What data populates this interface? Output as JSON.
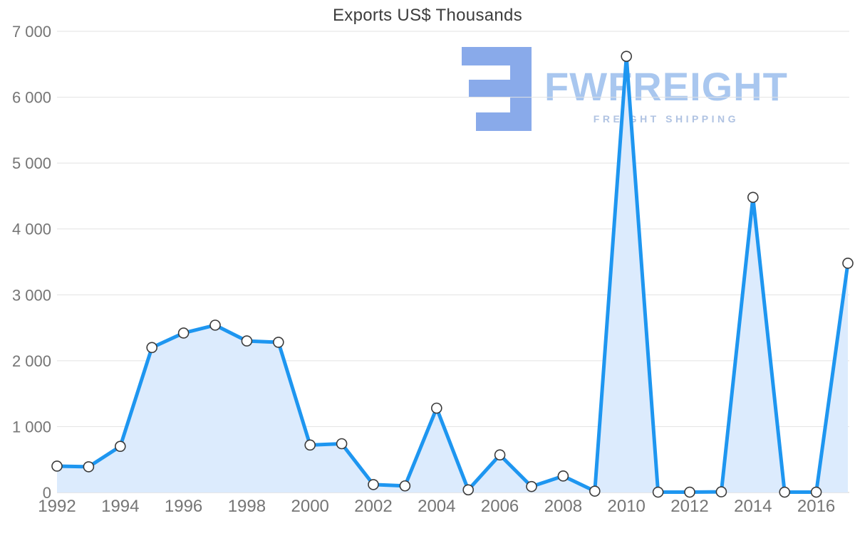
{
  "chart_data": {
    "type": "area",
    "title": "Exports US$ Thousands",
    "x": [
      1992,
      1993,
      1994,
      1995,
      1996,
      1997,
      1998,
      1999,
      2000,
      2001,
      2002,
      2003,
      2004,
      2005,
      2006,
      2007,
      2008,
      2009,
      2010,
      2011,
      2012,
      2013,
      2014,
      2015,
      2016,
      2017
    ],
    "values": [
      400,
      390,
      700,
      2200,
      2420,
      2540,
      2300,
      2280,
      720,
      740,
      120,
      100,
      1280,
      40,
      570,
      90,
      250,
      20,
      6620,
      5,
      5,
      10,
      4480,
      5,
      5,
      3480
    ],
    "xlim": [
      1992,
      2017
    ],
    "ylim": [
      0,
      7000
    ],
    "ytick_step": 1000,
    "yticks_labels": [
      "0",
      "1 000",
      "2 000",
      "3 000",
      "4 000",
      "5 000",
      "6 000",
      "7 000"
    ],
    "xticks": [
      1992,
      1994,
      1996,
      1998,
      2000,
      2002,
      2004,
      2006,
      2008,
      2010,
      2012,
      2014,
      2016
    ],
    "grid": true,
    "legend_position": "none",
    "xlabel": "",
    "ylabel": "",
    "colors": {
      "line": "#1e96f0",
      "fill": "#dcebfd",
      "marker_fill": "#ffffff",
      "marker_stroke": "#3b3b3b",
      "grid": "#e2e2e2",
      "axis_text": "#757575",
      "title_text": "#3d3d3d"
    }
  },
  "watermark": {
    "brand": "FWFREIGHT",
    "tagline": "FREIGHT SHIPPING",
    "brand_color": "#a9c7ef",
    "tagline_color": "#b0c3e2",
    "logo_color": "#7fa3e8",
    "logo_icon": "stacked-bars-f-mark"
  }
}
